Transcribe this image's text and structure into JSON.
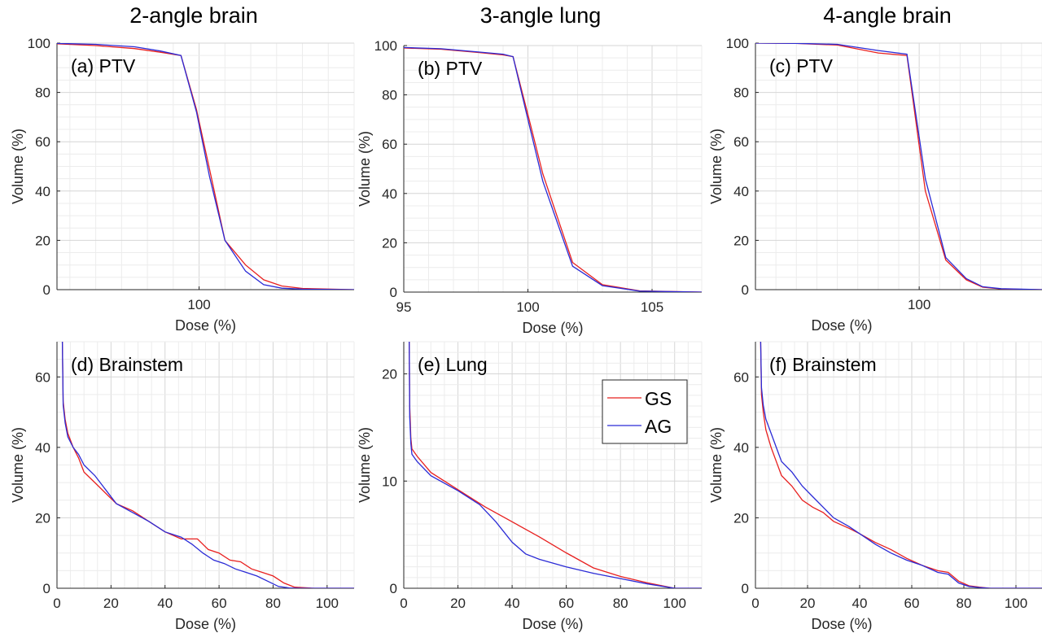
{
  "column_titles": [
    "2-angle brain",
    "3-angle lung",
    "4-angle brain"
  ],
  "legend": {
    "placement": "inside-top-right of panel (e)",
    "entries": [
      {
        "label": "GS",
        "color": "#e8201f"
      },
      {
        "label": "AG",
        "color": "#2b2bd6"
      }
    ]
  },
  "chart_data": [
    {
      "id": "a",
      "type": "line",
      "label": "(a) PTV",
      "xlabel": "Dose (%)",
      "ylabel": "Volume (%)",
      "xlim": [
        94.5,
        106
      ],
      "ylim": [
        0,
        100
      ],
      "xticks": [
        100
      ],
      "yticks": [
        0,
        20,
        40,
        60,
        80,
        100
      ],
      "grid": true,
      "series": [
        {
          "name": "GS",
          "color": "#e8201f",
          "x": [
            94.5,
            96,
            97.5,
            98.5,
            99.3,
            99.9,
            100.4,
            101.0,
            101.8,
            102.5,
            103.2,
            104.0,
            106.0
          ],
          "y": [
            99.7,
            99.0,
            97.8,
            96.3,
            95.0,
            73.0,
            49.0,
            20.0,
            10.0,
            4.0,
            1.5,
            0.5,
            0.0
          ]
        },
        {
          "name": "AG",
          "color": "#2b2bd6",
          "x": [
            94.5,
            96,
            97.5,
            98.5,
            99.3,
            99.9,
            100.4,
            101.0,
            101.8,
            102.5,
            103.2,
            104.0,
            106.0
          ],
          "y": [
            99.9,
            99.5,
            98.5,
            96.8,
            95.0,
            72.0,
            46.0,
            20.0,
            7.5,
            2.0,
            0.6,
            0.2,
            0.0
          ]
        }
      ]
    },
    {
      "id": "b",
      "type": "line",
      "label": "(b) PTV",
      "xlabel": "Dose (%)",
      "ylabel": "Volume (%)",
      "xlim": [
        95,
        107
      ],
      "ylim": [
        0,
        100
      ],
      "xticks": [
        95,
        100,
        105
      ],
      "yticks": [
        0,
        20,
        40,
        60,
        80,
        100
      ],
      "grid": true,
      "series": [
        {
          "name": "GS",
          "color": "#e8201f",
          "x": [
            95,
            96.5,
            98,
            99,
            99.4,
            100.0,
            100.6,
            101.8,
            103.0,
            104.5,
            107
          ],
          "y": [
            99.0,
            98.5,
            97.2,
            96.2,
            95.5,
            72.0,
            48.0,
            12.0,
            3.0,
            0.5,
            0.0
          ]
        },
        {
          "name": "AG",
          "color": "#2b2bd6",
          "x": [
            95,
            96.5,
            98,
            99,
            99.4,
            100.0,
            100.6,
            101.8,
            103.0,
            104.5,
            107
          ],
          "y": [
            99.2,
            98.7,
            97.4,
            96.5,
            95.5,
            70.0,
            45.0,
            10.5,
            2.6,
            0.4,
            0.0
          ]
        }
      ]
    },
    {
      "id": "c",
      "type": "line",
      "label": "(c) PTV",
      "xlabel": "Dose (%)",
      "ylabel": "Volume (%)",
      "xlim": [
        92,
        106
      ],
      "ylim": [
        0,
        100
      ],
      "xticks": [
        100
      ],
      "yticks": [
        0,
        20,
        40,
        60,
        80,
        100
      ],
      "grid": true,
      "series": [
        {
          "name": "GS",
          "color": "#e8201f",
          "x": [
            92,
            94,
            96,
            98,
            99.4,
            100.3,
            101.3,
            102.3,
            103.1,
            104.0,
            106
          ],
          "y": [
            100,
            99.9,
            99.2,
            96.0,
            95.0,
            40.0,
            12.0,
            4.0,
            1.0,
            0.3,
            0.0
          ]
        },
        {
          "name": "AG",
          "color": "#2b2bd6",
          "x": [
            92,
            94,
            96,
            98,
            99.4,
            100.3,
            101.3,
            102.3,
            103.1,
            104.0,
            106
          ],
          "y": [
            100,
            99.9,
            99.5,
            97.0,
            95.5,
            45.0,
            13.0,
            4.5,
            1.2,
            0.4,
            0.0
          ]
        }
      ]
    },
    {
      "id": "d",
      "type": "line",
      "label": "(d) Brainstem",
      "xlabel": "Dose (%)",
      "ylabel": "Volume (%)",
      "xlim": [
        0,
        110
      ],
      "ylim": [
        0,
        70
      ],
      "xticks": [
        0,
        20,
        40,
        60,
        80,
        100
      ],
      "yticks": [
        0,
        20,
        40,
        60
      ],
      "grid": true,
      "series": [
        {
          "name": "GS",
          "color": "#e8201f",
          "x": [
            2,
            2.3,
            3,
            4,
            6,
            8,
            10,
            14,
            18,
            22,
            28,
            34,
            40,
            46,
            48,
            52,
            56,
            60,
            64,
            68,
            72,
            76,
            80,
            84,
            88,
            95,
            110
          ],
          "y": [
            70,
            53,
            48,
            44,
            40,
            37,
            33,
            30,
            27,
            24,
            22,
            19,
            16,
            14,
            14,
            14,
            11,
            10,
            8,
            7.5,
            5.5,
            4.5,
            3.5,
            1.5,
            0.3,
            0,
            0
          ]
        },
        {
          "name": "AG",
          "color": "#2b2bd6",
          "x": [
            2,
            2.3,
            3,
            4,
            6,
            8,
            10,
            14,
            18,
            22,
            28,
            34,
            40,
            46,
            50,
            54,
            58,
            62,
            66,
            70,
            74,
            78,
            82,
            86,
            90,
            110
          ],
          "y": [
            70,
            52,
            47,
            43,
            40,
            38,
            35,
            32,
            28,
            24,
            21.5,
            19,
            16,
            14.5,
            12.5,
            10,
            8,
            7,
            5.5,
            4.5,
            3.5,
            2,
            0.5,
            0.1,
            0,
            0
          ]
        }
      ]
    },
    {
      "id": "e",
      "type": "line",
      "label": "(e) Lung",
      "xlabel": "Dose (%)",
      "ylabel": "Volume (%)",
      "xlim": [
        0,
        110
      ],
      "ylim": [
        0,
        23
      ],
      "xticks": [
        0,
        20,
        40,
        60,
        80,
        100
      ],
      "yticks": [
        0,
        10,
        20
      ],
      "grid": true,
      "series": [
        {
          "name": "GS",
          "color": "#e8201f",
          "x": [
            2,
            2.2,
            2.6,
            3,
            5,
            10,
            20,
            30,
            40,
            50,
            60,
            70,
            80,
            90,
            100,
            110
          ],
          "y": [
            23,
            17,
            14,
            13,
            12.3,
            10.8,
            9.2,
            7.6,
            6.2,
            4.8,
            3.3,
            1.9,
            1.1,
            0.5,
            0,
            0
          ]
        },
        {
          "name": "AG",
          "color": "#2b2bd6",
          "x": [
            2,
            2.2,
            2.6,
            3,
            5,
            10,
            20,
            28,
            34,
            40,
            45,
            50,
            60,
            70,
            80,
            90,
            100,
            110
          ],
          "y": [
            23,
            16,
            13.5,
            12.5,
            11.8,
            10.5,
            9.1,
            7.8,
            6.2,
            4.3,
            3.2,
            2.7,
            2.0,
            1.4,
            0.9,
            0.4,
            0,
            0
          ]
        }
      ]
    },
    {
      "id": "f",
      "type": "line",
      "label": "(f) Brainstem",
      "xlabel": "Dose (%)",
      "ylabel": "Volume (%)",
      "xlim": [
        0,
        110
      ],
      "ylim": [
        0,
        70
      ],
      "xticks": [
        0,
        20,
        40,
        60,
        80,
        100
      ],
      "yticks": [
        0,
        20,
        40,
        60
      ],
      "grid": true,
      "series": [
        {
          "name": "GS",
          "color": "#e8201f",
          "x": [
            2,
            2.3,
            3,
            4,
            6,
            8,
            10,
            14,
            18,
            22,
            26,
            30,
            36,
            40,
            46,
            52,
            58,
            64,
            70,
            74,
            78,
            82,
            86,
            90,
            110
          ],
          "y": [
            70,
            55,
            50,
            45,
            40,
            36,
            32,
            29,
            25,
            23,
            21.5,
            19,
            17,
            15.5,
            13,
            11,
            8.5,
            6.5,
            5,
            4.5,
            2,
            0.7,
            0.3,
            0,
            0
          ]
        },
        {
          "name": "AG",
          "color": "#2b2bd6",
          "x": [
            2,
            2.3,
            3,
            4,
            6,
            8,
            10,
            14,
            18,
            22,
            26,
            30,
            36,
            40,
            46,
            52,
            58,
            64,
            70,
            74,
            78,
            82,
            86,
            90,
            110
          ],
          "y": [
            70,
            57,
            52,
            48,
            44,
            40,
            36,
            33,
            29,
            26,
            23,
            20,
            17.5,
            15.5,
            12.5,
            10,
            8,
            6.5,
            4.5,
            4,
            1.5,
            0.5,
            0.2,
            0,
            0
          ]
        }
      ]
    }
  ]
}
